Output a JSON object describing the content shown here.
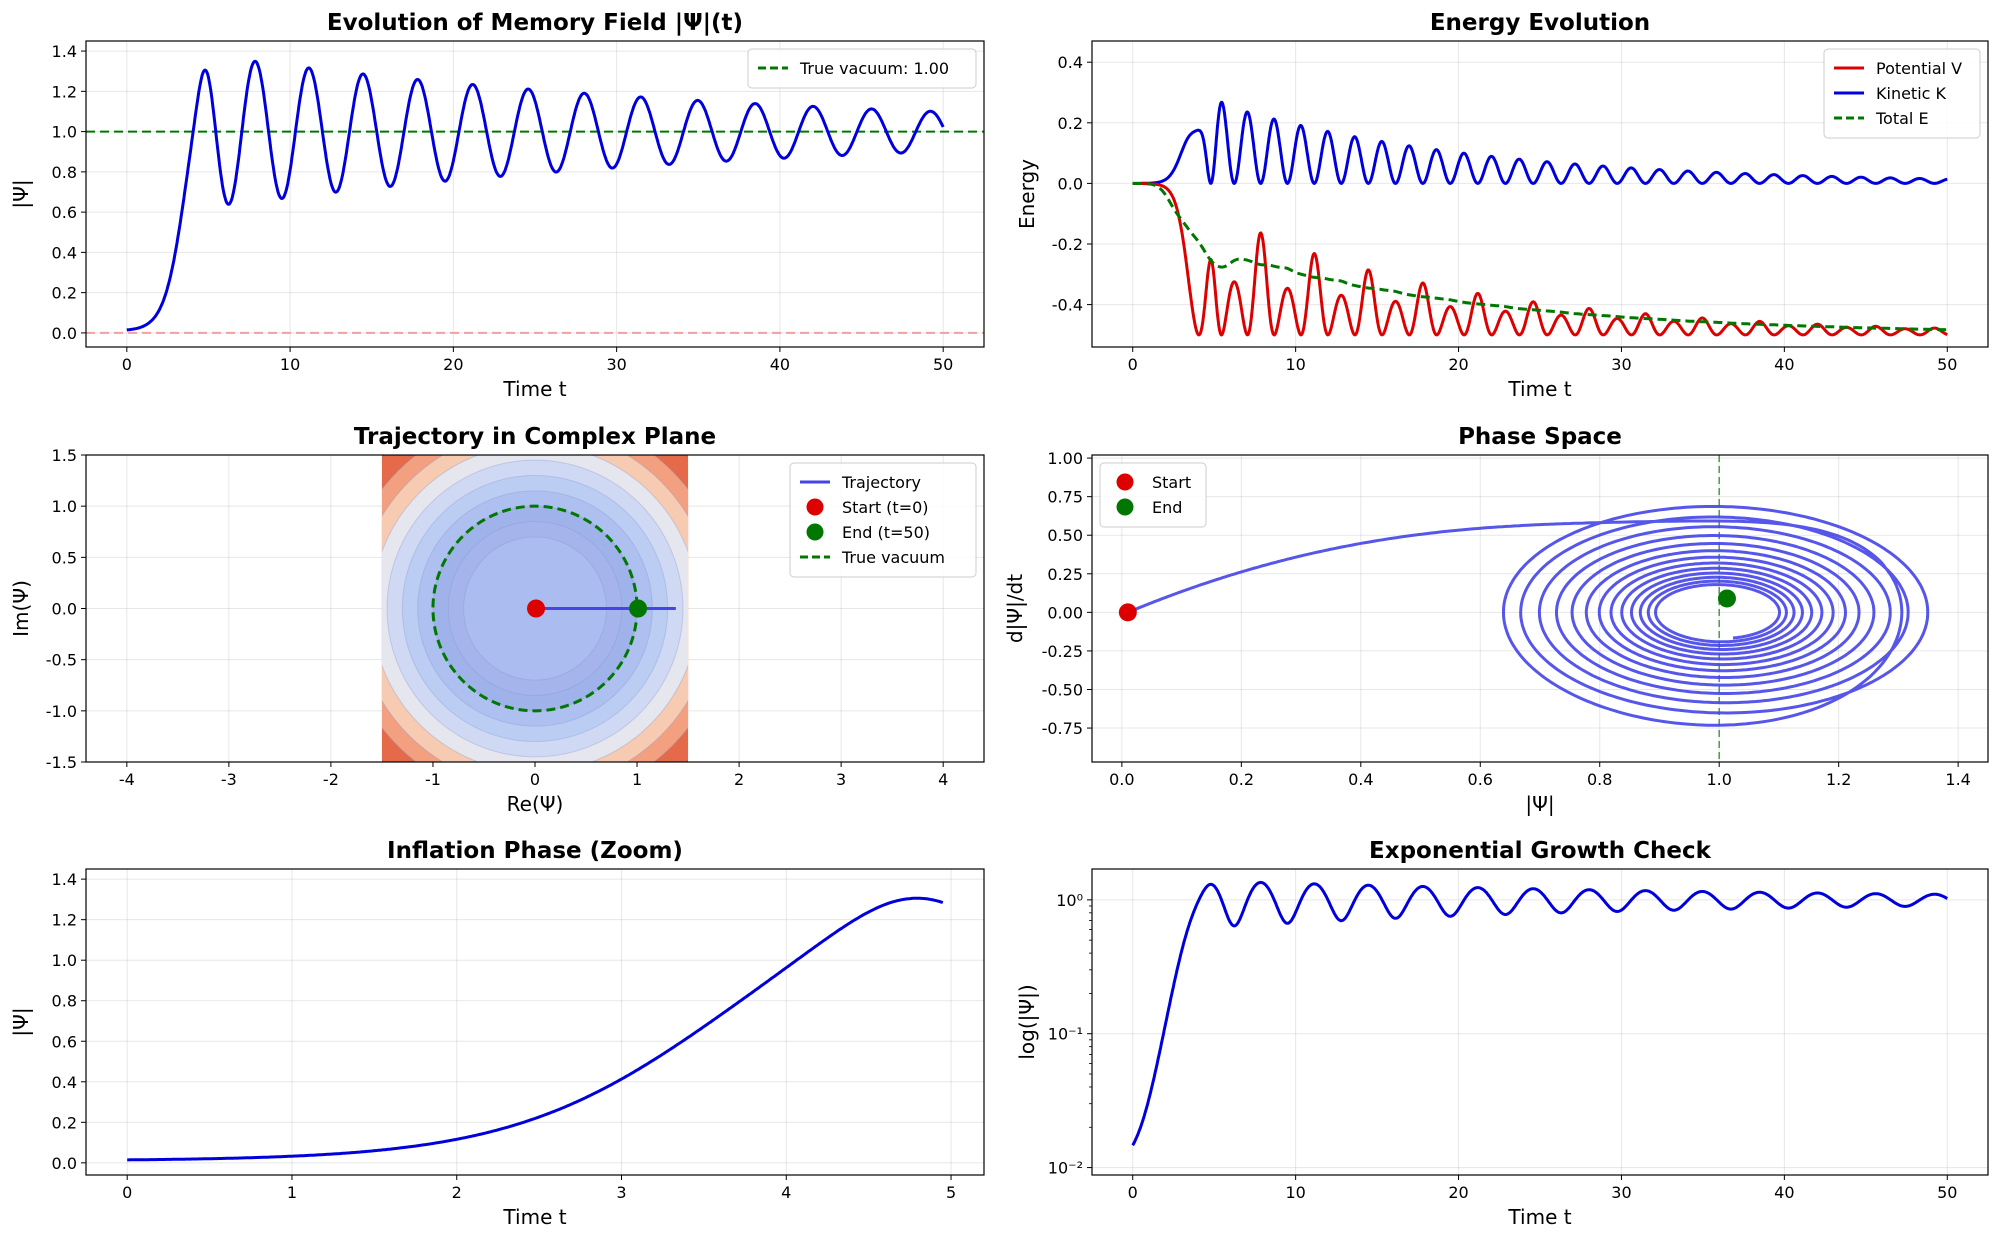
{
  "colors": {
    "blue": "#0000dd",
    "red": "#dd0000",
    "green": "#007700",
    "traj": "#4444e8",
    "lightred": "#f0a0a0"
  },
  "chart_data": [
    {
      "id": "p1",
      "type": "line",
      "title": "Evolution of Memory Field |Ψ|(t)",
      "xlabel": "Time t",
      "ylabel": "|Ψ|",
      "xlim": [
        -2.5,
        52.5
      ],
      "ylim": [
        -0.07,
        1.45
      ],
      "xticks": [
        0,
        10,
        20,
        30,
        40,
        50
      ],
      "xticklabels": [
        "0",
        "10",
        "20",
        "30",
        "40",
        "50"
      ],
      "yticks": [
        0.0,
        0.2,
        0.4,
        0.6,
        0.8,
        1.0,
        1.2,
        1.4
      ],
      "yticklabels": [
        "0.0",
        "0.2",
        "0.4",
        "0.6",
        "0.8",
        "1.0",
        "1.2",
        "1.4"
      ],
      "grid": true,
      "legend_loc": "upper-right",
      "series": [
        {
          "name": "",
          "role": "psi_abs",
          "t_range": [
            0,
            50
          ],
          "color": "blue"
        },
        {
          "name": "True vacuum: 1.00",
          "role": "hline",
          "value": 1.0,
          "color": "green",
          "dash": true
        },
        {
          "name": "",
          "role": "hline",
          "value": 0.0,
          "color": "lightred",
          "dash": true
        }
      ]
    },
    {
      "id": "p2",
      "type": "line",
      "title": "Energy Evolution",
      "xlabel": "Time t",
      "ylabel": "Energy",
      "xlim": [
        -2.5,
        52.5
      ],
      "ylim": [
        -0.54,
        0.47
      ],
      "xticks": [
        0,
        10,
        20,
        30,
        40,
        50
      ],
      "xticklabels": [
        "0",
        "10",
        "20",
        "30",
        "40",
        "50"
      ],
      "yticks": [
        -0.4,
        -0.2,
        0.0,
        0.2,
        0.4
      ],
      "yticklabels": [
        "-0.4",
        "-0.2",
        "0.0",
        "0.2",
        "0.4"
      ],
      "grid": true,
      "legend_loc": "upper-right",
      "series": [
        {
          "name": "Potential V",
          "role": "potential",
          "color": "red"
        },
        {
          "name": "Kinetic K",
          "role": "kinetic",
          "color": "blue"
        },
        {
          "name": "Total E",
          "role": "total",
          "color": "green",
          "dash": true
        }
      ]
    },
    {
      "id": "p3",
      "type": "line",
      "title": "Trajectory in Complex Plane",
      "xlabel": "Re(Ψ)",
      "ylabel": "Im(Ψ)",
      "xlim": [
        -4.4,
        4.4
      ],
      "ylim": [
        -1.5,
        1.5
      ],
      "xticks": [
        -4,
        -3,
        -2,
        -1,
        0,
        1,
        2,
        3,
        4
      ],
      "xticklabels": [
        "-4",
        "-3",
        "-2",
        "-1",
        "0",
        "1",
        "2",
        "3",
        "4"
      ],
      "yticks": [
        -1.5,
        -1.0,
        -0.5,
        0.0,
        0.5,
        1.0,
        1.5
      ],
      "yticklabels": [
        "-1.5",
        "-1.0",
        "-0.5",
        "0.0",
        "0.5",
        "1.0",
        "1.5"
      ],
      "grid": true,
      "legend_loc": "upper-right",
      "contour_extent": [
        -1.5,
        1.5
      ],
      "series": [
        {
          "name": "Trajectory",
          "role": "trajectory",
          "color": "traj"
        },
        {
          "name": "Start (t=0)",
          "role": "marker",
          "x": 0.01,
          "y": 0.0,
          "color": "red"
        },
        {
          "name": "End (t=50)",
          "role": "marker",
          "x": 1.01,
          "y": 0.0,
          "color": "green"
        },
        {
          "name": "True vacuum",
          "role": "circle",
          "radius": 1.0,
          "color": "green",
          "dash": true
        }
      ]
    },
    {
      "id": "p4",
      "type": "line",
      "title": "Phase Space",
      "xlabel": "|Ψ|",
      "ylabel": "d|Ψ|/dt",
      "xlim": [
        -0.05,
        1.45
      ],
      "ylim": [
        -0.97,
        1.02
      ],
      "xticks": [
        0.0,
        0.2,
        0.4,
        0.6,
        0.8,
        1.0,
        1.2,
        1.4
      ],
      "xticklabels": [
        "0.0",
        "0.2",
        "0.4",
        "0.6",
        "0.8",
        "1.0",
        "1.2",
        "1.4"
      ],
      "yticks": [
        -0.75,
        -0.5,
        -0.25,
        0.0,
        0.25,
        0.5,
        0.75,
        1.0
      ],
      "yticklabels": [
        "-0.75",
        "-0.50",
        "-0.25",
        "0.00",
        "0.25",
        "0.50",
        "0.75",
        "1.00"
      ],
      "grid": true,
      "legend_loc": "upper-left",
      "series": [
        {
          "name": "",
          "role": "phase",
          "color": "traj"
        },
        {
          "name": "",
          "role": "vline",
          "value": 1.0,
          "color": "green",
          "dash": true
        },
        {
          "name": "Start",
          "role": "marker",
          "x": 0.01,
          "y": 0.0,
          "color": "red"
        },
        {
          "name": "End",
          "role": "marker",
          "x": 1.013,
          "y": 0.09,
          "color": "green"
        }
      ]
    },
    {
      "id": "p5",
      "type": "line",
      "title": "Inflation Phase (Zoom)",
      "xlabel": "Time t",
      "ylabel": "|Ψ|",
      "xlim": [
        -0.25,
        5.2
      ],
      "ylim": [
        -0.06,
        1.45
      ],
      "xticks": [
        0,
        1,
        2,
        3,
        4,
        5
      ],
      "xticklabels": [
        "0",
        "1",
        "2",
        "3",
        "4",
        "5"
      ],
      "yticks": [
        0.0,
        0.2,
        0.4,
        0.6,
        0.8,
        1.0,
        1.2,
        1.4
      ],
      "yticklabels": [
        "0.0",
        "0.2",
        "0.4",
        "0.6",
        "0.8",
        "1.0",
        "1.2",
        "1.4"
      ],
      "grid": true,
      "series": [
        {
          "name": "",
          "role": "psi_abs",
          "t_range": [
            0,
            4.95
          ],
          "color": "blue"
        }
      ]
    },
    {
      "id": "p6",
      "type": "line",
      "title": "Exponential Growth Check",
      "xlabel": "Time t",
      "ylabel": "log(|Ψ|)",
      "xlim": [
        -2.5,
        52.5
      ],
      "ylim": [
        0.0088,
        1.7
      ],
      "yscale": "log",
      "xticks": [
        0,
        10,
        20,
        30,
        40,
        50
      ],
      "xticklabels": [
        "0",
        "10",
        "20",
        "30",
        "40",
        "50"
      ],
      "yticks": [
        0.01,
        0.1,
        1.0
      ],
      "yticklabels": [
        "10⁻²",
        "10⁻¹",
        "10⁰"
      ],
      "grid": true,
      "series": [
        {
          "name": "",
          "role": "psi_abs",
          "t_range": [
            0,
            50
          ],
          "color": "blue"
        }
      ]
    }
  ]
}
